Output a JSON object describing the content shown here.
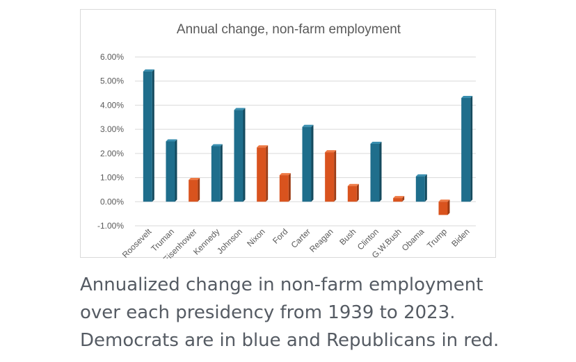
{
  "chart_data": {
    "type": "bar",
    "title": "Annual change, non-farm employment",
    "categories": [
      "Roosevelt",
      "Truman",
      "Eisenhower",
      "Kennedy",
      "Johnson",
      "Nixon",
      "Ford",
      "Carter",
      "Reagan",
      "Bush",
      "Clinton",
      "G.W.Bush",
      "Obama",
      "Trump",
      "Biden"
    ],
    "values": [
      5.4,
      2.5,
      0.9,
      2.3,
      3.8,
      2.25,
      1.1,
      3.1,
      2.05,
      0.65,
      2.4,
      0.15,
      1.05,
      -0.55,
      4.3
    ],
    "party": [
      "D",
      "D",
      "R",
      "D",
      "D",
      "R",
      "R",
      "D",
      "R",
      "R",
      "D",
      "R",
      "D",
      "R",
      "D"
    ],
    "ylim": [
      -1.0,
      6.0
    ],
    "yticks": [
      "6.00%",
      "5.00%",
      "4.00%",
      "3.00%",
      "2.00%",
      "1.00%",
      "0.00%",
      "-1.00%"
    ],
    "ytick_values": [
      6,
      5,
      4,
      3,
      2,
      1,
      0,
      -1
    ],
    "xlabel": "",
    "ylabel": "",
    "colors": {
      "D": "#1f6e8c",
      "R": "#d9531e",
      "D_dark": "#144a5e",
      "R_dark": "#9c3a12",
      "D_light": "#3a8fb0",
      "R_light": "#ee7a45",
      "grid": "#d9d9d9",
      "axis_text": "#595959",
      "title_text": "#595959"
    }
  },
  "caption": {
    "line1": "Annualized change in non-farm employment",
    "line2": "over each presidency from 1939 to 2023.",
    "line3": "Democrats are in blue and Republicans in red."
  }
}
